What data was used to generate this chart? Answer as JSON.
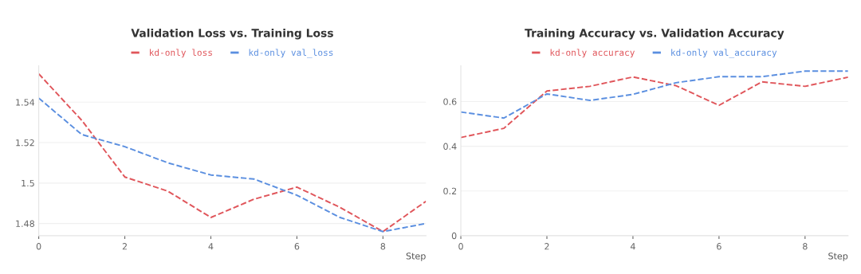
{
  "chart_data": [
    {
      "type": "line",
      "title": "Validation Loss vs. Training Loss",
      "xlabel": "Step",
      "x": [
        0,
        1,
        2,
        3,
        4,
        5,
        6,
        7,
        8,
        9
      ],
      "series": [
        {
          "name": "kd-only loss",
          "color": "#e0565b",
          "values": [
            1.554,
            1.531,
            1.503,
            1.496,
            1.483,
            1.492,
            1.498,
            1.488,
            1.476,
            1.491
          ]
        },
        {
          "name": "kd-only val_loss",
          "color": "#5b8fe0",
          "values": [
            1.542,
            1.524,
            1.518,
            1.51,
            1.504,
            1.502,
            1.494,
            1.483,
            1.476,
            1.48
          ]
        }
      ],
      "xlim": [
        0,
        9
      ],
      "xticks": [
        0,
        2,
        4,
        6,
        8
      ],
      "ylim": [
        1.474,
        1.558
      ],
      "yticks": [
        {
          "value": 1.48,
          "label": "1.48"
        },
        {
          "value": 1.5,
          "label": "1.5"
        },
        {
          "value": 1.52,
          "label": "1.52"
        },
        {
          "value": 1.54,
          "label": "1.54"
        }
      ],
      "grid": "y",
      "legend": "top",
      "line_style": "dashed",
      "marker": "none"
    },
    {
      "type": "line",
      "title": "Training Accuracy vs. Validation Accuracy",
      "xlabel": "Step",
      "x": [
        0,
        1,
        2,
        3,
        4,
        5,
        6,
        7,
        8,
        9
      ],
      "series": [
        {
          "name": "kd-only accuracy",
          "color": "#e0565b",
          "values": [
            0.439,
            0.48,
            0.647,
            0.668,
            0.71,
            0.671,
            0.583,
            0.688,
            0.668,
            0.709
          ]
        },
        {
          "name": "kd-only val_accuracy",
          "color": "#5b8fe0",
          "values": [
            0.553,
            0.526,
            0.634,
            0.605,
            0.632,
            0.684,
            0.711,
            0.711,
            0.736,
            0.736
          ]
        }
      ],
      "xlim": [
        0,
        9
      ],
      "xticks": [
        0,
        2,
        4,
        6,
        8
      ],
      "ylim": [
        0,
        0.76
      ],
      "yticks": [
        0,
        0.2,
        0.4,
        0.6
      ],
      "grid": "y",
      "legend": "top",
      "line_style": "dashed",
      "marker": "none"
    }
  ]
}
